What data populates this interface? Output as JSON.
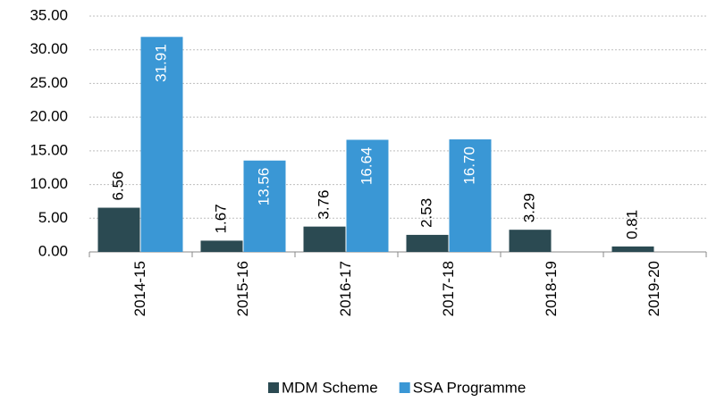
{
  "chart_data": {
    "type": "bar",
    "categories": [
      "2014-15",
      "2015-16",
      "2016-17",
      "2017-18",
      "2018-19",
      "2019-20"
    ],
    "series": [
      {
        "name": "MDM Scheme",
        "color": "#2b4a52",
        "values": [
          6.56,
          1.67,
          3.76,
          2.53,
          3.29,
          0.81
        ],
        "value_labels": [
          "6.56",
          "1.67",
          "3.76",
          "2.53",
          "3.29",
          "0.81"
        ]
      },
      {
        "name": "SSA Programme",
        "color": "#3a97d5",
        "values": [
          31.91,
          13.56,
          16.64,
          16.7,
          null,
          null
        ],
        "value_labels": [
          "31.91",
          "13.56",
          "16.64",
          "16.70",
          null,
          null
        ]
      }
    ],
    "ylim": [
      0,
      35
    ],
    "yticks": [
      {
        "value": 0,
        "label": "0.00"
      },
      {
        "value": 5,
        "label": "5.00"
      },
      {
        "value": 10,
        "label": "10.00"
      },
      {
        "value": 15,
        "label": "15.00"
      },
      {
        "value": 20,
        "label": "20.00"
      },
      {
        "value": 25,
        "label": "25.00"
      },
      {
        "value": 30,
        "label": "30.00"
      },
      {
        "value": 35,
        "label": "35.00"
      }
    ],
    "grid": true,
    "legend": "bottom"
  }
}
